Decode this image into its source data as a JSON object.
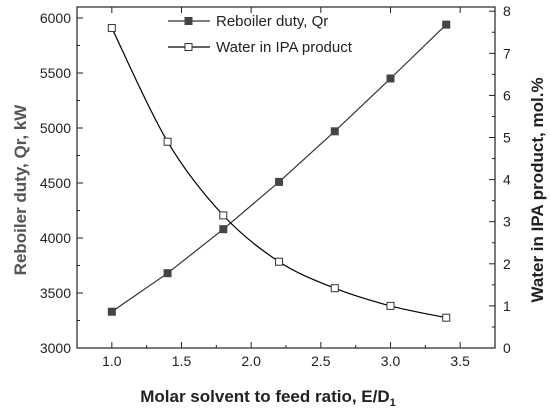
{
  "chart_data": {
    "type": "line",
    "x": [
      1.0,
      1.4,
      1.8,
      2.2,
      2.6,
      3.0,
      3.4
    ],
    "xlabel_main": "Molar solvent to feed ratio, E/D",
    "xlabel_sub": "1",
    "ylabel_left": "Reboiler duty, Qr, kW",
    "ylabel_right": "Water in IPA product, mol.%",
    "xlim": [
      0.75,
      3.75
    ],
    "ylim_left": [
      3000,
      6100
    ],
    "ylim_right": [
      0,
      8.1
    ],
    "xticks": [
      "1.0",
      "1.5",
      "2.0",
      "2.5",
      "3.0",
      "3.5"
    ],
    "yticks_left": [
      "3000",
      "3500",
      "4000",
      "4500",
      "5000",
      "5500",
      "6000"
    ],
    "yticks_right": [
      "0",
      "1",
      "2",
      "3",
      "4",
      "5",
      "6",
      "7",
      "8"
    ],
    "legend_position": "top-center",
    "series": [
      {
        "name": "Reboiler duty, Qr",
        "axis": "left",
        "marker": "filled-square",
        "color": "#333333",
        "values": [
          3330,
          3680,
          4080,
          4510,
          4970,
          5450,
          5940
        ]
      },
      {
        "name": "Water in IPA product",
        "axis": "right",
        "marker": "open-square",
        "color": "#000000",
        "values": [
          7.6,
          4.9,
          3.15,
          2.05,
          1.42,
          1.0,
          0.72
        ]
      }
    ]
  }
}
